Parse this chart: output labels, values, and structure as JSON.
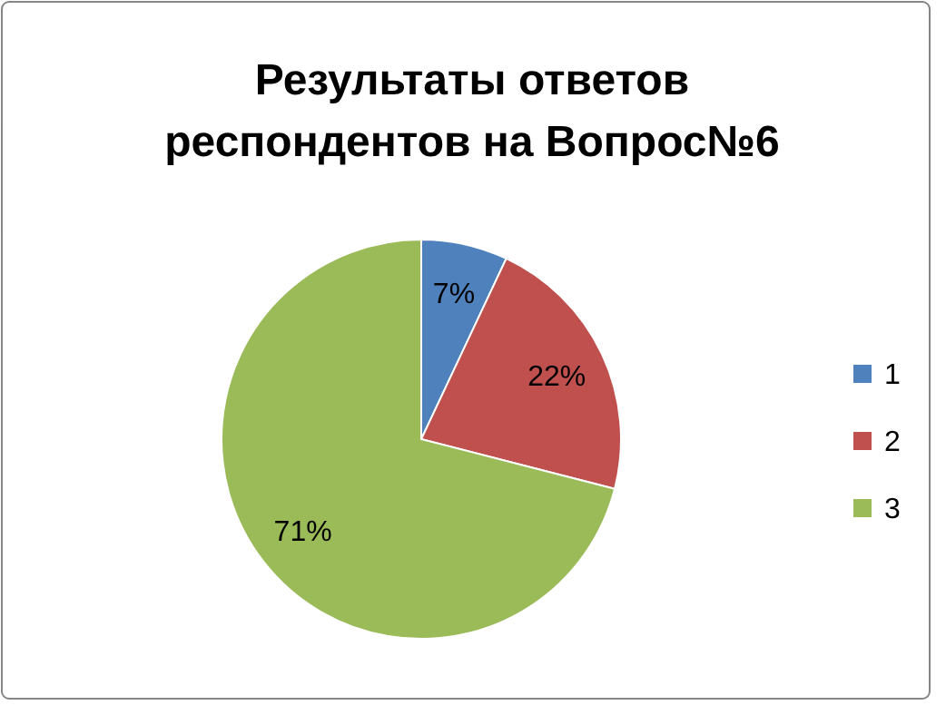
{
  "chart_data": {
    "type": "pie",
    "title": "Результаты ответов респондентов на Вопрос№6",
    "categories": [
      "1",
      "2",
      "3"
    ],
    "values": [
      7,
      22,
      71
    ],
    "colors": [
      "#4f81bd",
      "#c0504d",
      "#9bbb59"
    ],
    "value_labels": [
      "7%",
      "22%",
      "71%"
    ],
    "legend": "right"
  }
}
